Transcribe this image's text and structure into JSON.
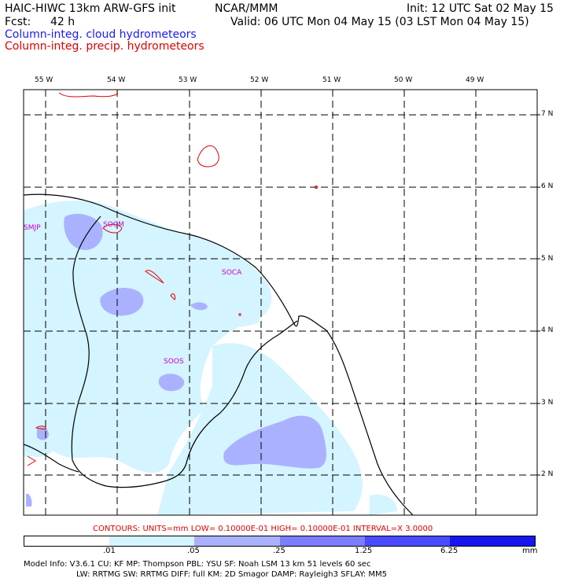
{
  "header": {
    "model": "HAIC-HIWC 13km ARW-GFS init",
    "org": "NCAR/MMM",
    "init": "Init: 12 UTC Sat 02 May 15",
    "fcst_label": "Fcst:",
    "fcst_value": "42 h",
    "valid": "Valid: 06 UTC Mon 04 May 15 (03 LST Mon 04 May 15)"
  },
  "fields": {
    "cloud": "Column-integ. cloud hydrometeors",
    "precip": "Column-integ. precip. hydrometeors"
  },
  "axes": {
    "longitudes": [
      "55 W",
      "54 W",
      "53 W",
      "52 W",
      "51 W",
      "50 W",
      "49 W"
    ],
    "latitudes": [
      "7 N",
      "6 N",
      "5 N",
      "4 N",
      "3 N",
      "2 N"
    ]
  },
  "stations": {
    "smjp": "SMJP",
    "socm": "SOCM",
    "soca": "SOCA",
    "soos": "SOOS"
  },
  "contours_line": "CONTOURS:  UNITS=mm   LOW= 0.10000E-01   HIGH= 0.10000E-01   INTERVAL=X   3.0000",
  "colorbar": {
    "labels": [
      ".01",
      ".05",
      ".25",
      "1.25",
      "6.25"
    ],
    "units": "mm",
    "colors": [
      "#ffffff",
      "#d4f4ff",
      "#aab2ff",
      "#7d7dff",
      "#4a4aff",
      "#1616ee"
    ]
  },
  "footer": {
    "line1": "Model Info: V3.6.1    CU: KF      MP: Thompson     PBL: YSU       SF: Noah LSM     13 km    51 levels   60 sec",
    "line2": "LW: RRTMG    SW: RRTMG   DIFF: full    KM: 2D Smagor  DAMP: Rayleigh3  SFLAY: MM5"
  }
}
